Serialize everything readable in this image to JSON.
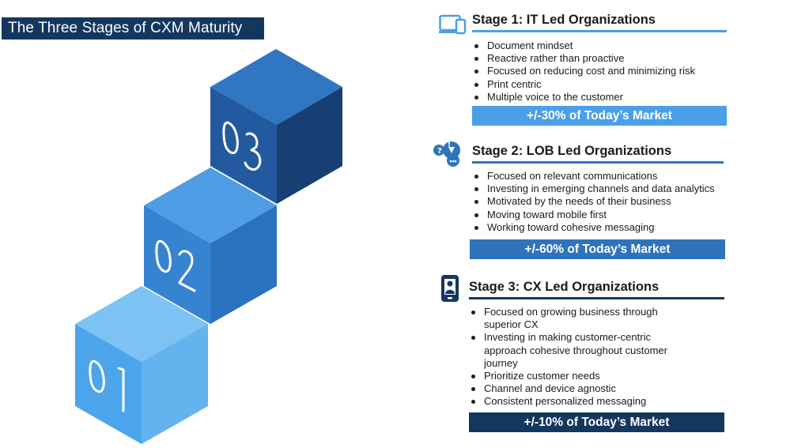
{
  "title": "The Three Stages of CXM Maturity",
  "colors": {
    "title_bg": "#14375f",
    "stage1_accent": "#4a9fe8",
    "stage2_accent": "#2f73bd",
    "stage3_accent": "#14375f"
  },
  "cubes": [
    {
      "label": "01",
      "top": "#7cc2f3",
      "front": "#4ca5ea",
      "side": "#62b3ee"
    },
    {
      "label": "02",
      "top": "#4f9de4",
      "front": "#3683d2",
      "side": "#2a72bf"
    },
    {
      "label": "03",
      "top": "#3176c2",
      "front": "#23599f",
      "side": "#173f73"
    }
  ],
  "stages": [
    {
      "title": "Stage 1: IT Led Organizations",
      "icon": "devices-icon",
      "bullets": [
        "Document mindset",
        "Reactive rather than proactive",
        "Focused on reducing cost and minimizing risk",
        "Print centric",
        "Multiple voice to the customer"
      ],
      "market": "+/-30% of Today’s Market"
    },
    {
      "title": "Stage 2: LOB Led Organizations",
      "icon": "social-chat-icon",
      "bullets": [
        "Focused on relevant communications",
        "Investing in emerging channels and data analytics",
        "Motivated by the needs of their business",
        "Moving toward mobile first",
        "Working toward cohesive messaging"
      ],
      "market": "+/-60% of Today’s Market"
    },
    {
      "title": "Stage 3: CX Led Organizations",
      "icon": "mobile-user-icon",
      "bullets": [
        "Focused on growing business through superior CX",
        "Investing in making customer-centric approach cohesive throughout customer journey",
        "Prioritize customer needs",
        "Channel and device agnostic",
        "Consistent personalized messaging"
      ],
      "market": "+/-10% of Today’s Market"
    }
  ]
}
